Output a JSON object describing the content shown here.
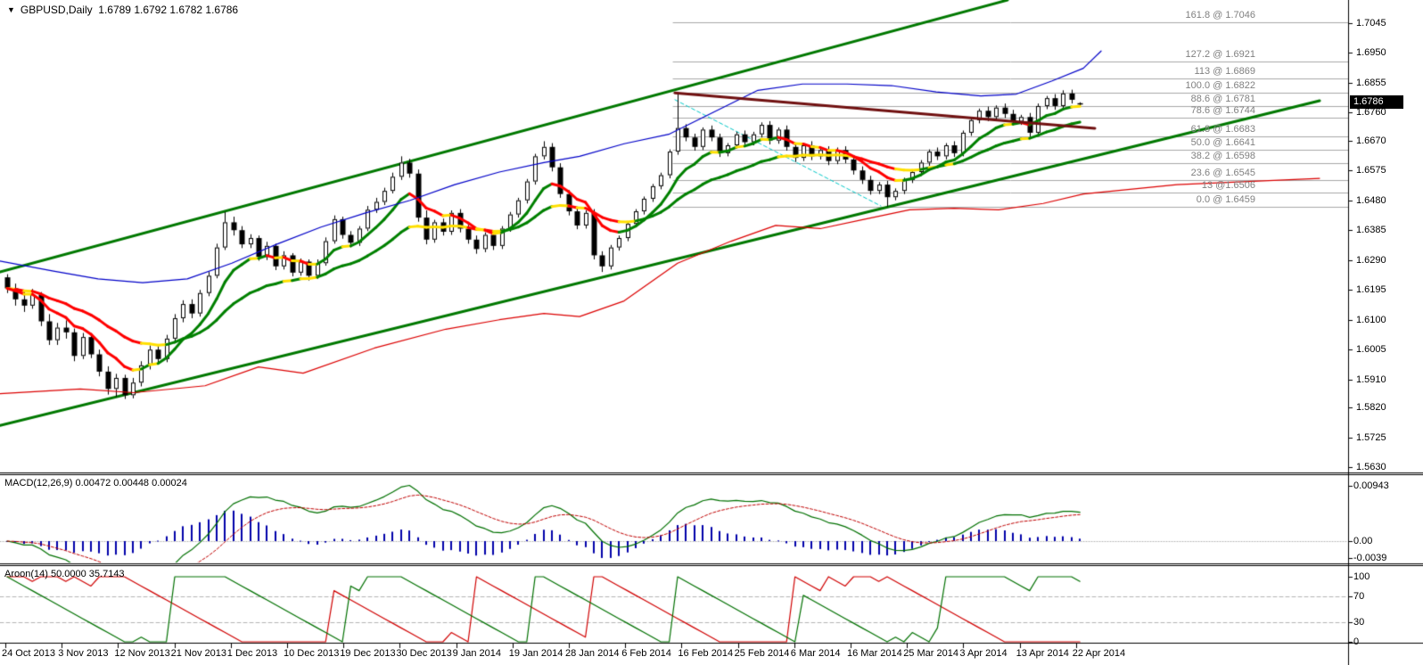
{
  "header": {
    "symbol_label": "GBPUSD,Daily",
    "ohlc_label": "1.6789 1.6792 1.6782 1.6786",
    "collapse_icon": "▼"
  },
  "price_axis": {
    "current_price": "1.6786",
    "ticks": [
      "1.7045",
      "1.6950",
      "1.6855",
      "1.6760",
      "1.6670",
      "1.6575",
      "1.6480",
      "1.6385",
      "1.6290",
      "1.6195",
      "1.6100",
      "1.6005",
      "1.5910",
      "1.5820",
      "1.5725",
      "1.5630"
    ]
  },
  "panels": {
    "macd": {
      "label": "MACD(12,26,9) 0.00472 0.00448 0.00024",
      "axis": [
        {
          "label": "0.00943",
          "value": 0.00943
        },
        {
          "label": "0.00",
          "value": 0
        },
        {
          "label": "-0.0039",
          "value": -0.0039
        }
      ]
    },
    "aroon": {
      "label": "Aroon(14) 50.0000 35.7143",
      "axis": [
        {
          "label": "100",
          "value": 100
        },
        {
          "label": "70",
          "value": 70
        },
        {
          "label": "30",
          "value": 30
        },
        {
          "label": "0",
          "value": 0
        }
      ],
      "dashed_grid_values": [
        70,
        30
      ]
    }
  },
  "time_axis": {
    "labels": [
      "24 Oct 2013",
      "3 Nov 2013",
      "12 Nov 2013",
      "21 Nov 2013",
      "1 Dec 2013",
      "10 Dec 2013",
      "19 Dec 2013",
      "30 Dec 2013",
      "9 Jan 2014",
      "19 Jan 2014",
      "28 Jan 2014",
      "6 Feb 2014",
      "16 Feb 2014",
      "25 Feb 2014",
      "6 Mar 2014",
      "16 Mar 2014",
      "25 Mar 2014",
      "3 Apr 2014",
      "13 Apr 2014",
      "22 Apr 2014"
    ]
  },
  "chart_data": {
    "type": "candlestick",
    "symbol": "GBPUSD",
    "timeframe": "Daily",
    "ohlc_current": {
      "open": 1.6789,
      "high": 1.6792,
      "low": 1.6782,
      "close": 1.6786
    },
    "candles": [
      [
        1.6235,
        1.6245,
        1.6185,
        1.62
      ],
      [
        1.62,
        1.6215,
        1.6145,
        1.6165
      ],
      [
        1.6165,
        1.619,
        1.6125,
        1.6145
      ],
      [
        1.6145,
        1.6198,
        1.6135,
        1.618
      ],
      [
        1.618,
        1.6188,
        1.608,
        1.6095
      ],
      [
        1.6095,
        1.6118,
        1.602,
        1.6035
      ],
      [
        1.6035,
        1.609,
        1.602,
        1.6075
      ],
      [
        1.6075,
        1.6098,
        1.604,
        1.606
      ],
      [
        1.606,
        1.6072,
        1.5968,
        1.5985
      ],
      [
        1.5985,
        1.6058,
        1.5975,
        1.6045
      ],
      [
        1.6045,
        1.6052,
        1.5978,
        1.599
      ],
      [
        1.599,
        1.6005,
        1.592,
        1.5935
      ],
      [
        1.5935,
        1.5952,
        1.5862,
        1.588
      ],
      [
        1.588,
        1.5928,
        1.5855,
        1.5915
      ],
      [
        1.5915,
        1.5925,
        1.5848,
        1.586
      ],
      [
        1.586,
        1.5915,
        1.585,
        1.59
      ],
      [
        1.59,
        1.5968,
        1.5888,
        1.5955
      ],
      [
        1.5955,
        1.6018,
        1.5942,
        1.6005
      ],
      [
        1.6005,
        1.6022,
        1.5958,
        1.5975
      ],
      [
        1.5975,
        1.6052,
        1.5965,
        1.604
      ],
      [
        1.604,
        1.6118,
        1.6032,
        1.6105
      ],
      [
        1.6105,
        1.6162,
        1.6092,
        1.615
      ],
      [
        1.615,
        1.6165,
        1.6105,
        1.612
      ],
      [
        1.612,
        1.6195,
        1.611,
        1.6185
      ],
      [
        1.6185,
        1.6252,
        1.6175,
        1.624
      ],
      [
        1.624,
        1.6342,
        1.6232,
        1.633
      ],
      [
        1.633,
        1.6443,
        1.6322,
        1.641
      ],
      [
        1.641,
        1.6428,
        1.6368,
        1.6385
      ],
      [
        1.6385,
        1.6398,
        1.6328,
        1.634
      ],
      [
        1.634,
        1.6372,
        1.6328,
        1.636
      ],
      [
        1.636,
        1.6368,
        1.6288,
        1.63
      ],
      [
        1.63,
        1.6348,
        1.629,
        1.6335
      ],
      [
        1.6335,
        1.6342,
        1.6258,
        1.627
      ],
      [
        1.627,
        1.6318,
        1.626,
        1.6305
      ],
      [
        1.6305,
        1.6312,
        1.6238,
        1.625
      ],
      [
        1.625,
        1.6295,
        1.624,
        1.6285
      ],
      [
        1.6285,
        1.6292,
        1.6225,
        1.624
      ],
      [
        1.624,
        1.6292,
        1.623,
        1.628
      ],
      [
        1.628,
        1.6362,
        1.6272,
        1.635
      ],
      [
        1.635,
        1.6432,
        1.6342,
        1.642
      ],
      [
        1.642,
        1.6428,
        1.6358,
        1.637
      ],
      [
        1.637,
        1.6382,
        1.633,
        1.6345
      ],
      [
        1.6345,
        1.6398,
        1.6335,
        1.639
      ],
      [
        1.639,
        1.6462,
        1.6382,
        1.645
      ],
      [
        1.645,
        1.6488,
        1.644,
        1.6475
      ],
      [
        1.6475,
        1.652,
        1.6465,
        1.651
      ],
      [
        1.651,
        1.6568,
        1.6502,
        1.6555
      ],
      [
        1.6555,
        1.662,
        1.6545,
        1.66
      ],
      [
        1.66,
        1.6612,
        1.6552,
        1.6565
      ],
      [
        1.6565,
        1.6578,
        1.6412,
        1.6425
      ],
      [
        1.6425,
        1.6448,
        1.634,
        1.6355
      ],
      [
        1.6355,
        1.6418,
        1.6345,
        1.641
      ],
      [
        1.641,
        1.6422,
        1.6368,
        1.638
      ],
      [
        1.638,
        1.6448,
        1.637,
        1.644
      ],
      [
        1.644,
        1.6452,
        1.6378,
        1.639
      ],
      [
        1.639,
        1.6402,
        1.6342,
        1.6355
      ],
      [
        1.6355,
        1.6368,
        1.631,
        1.6325
      ],
      [
        1.6325,
        1.6378,
        1.6315,
        1.637
      ],
      [
        1.637,
        1.6382,
        1.6322,
        1.6335
      ],
      [
        1.6335,
        1.6398,
        1.6325,
        1.639
      ],
      [
        1.639,
        1.6443,
        1.638,
        1.6435
      ],
      [
        1.6435,
        1.6488,
        1.6425,
        1.648
      ],
      [
        1.648,
        1.6548,
        1.647,
        1.654
      ],
      [
        1.654,
        1.6628,
        1.653,
        1.662
      ],
      [
        1.662,
        1.6668,
        1.661,
        1.665
      ],
      [
        1.665,
        1.6662,
        1.6572,
        1.6585
      ],
      [
        1.6585,
        1.6598,
        1.6488,
        1.65
      ],
      [
        1.65,
        1.6512,
        1.6432,
        1.6445
      ],
      [
        1.6445,
        1.6458,
        1.6388,
        1.64
      ],
      [
        1.64,
        1.6448,
        1.639,
        1.644
      ],
      [
        1.644,
        1.6452,
        1.6292,
        1.6305
      ],
      [
        1.6305,
        1.6318,
        1.6252,
        1.627
      ],
      [
        1.627,
        1.6338,
        1.626,
        1.633
      ],
      [
        1.633,
        1.6368,
        1.632,
        1.636
      ],
      [
        1.636,
        1.6412,
        1.635,
        1.6405
      ],
      [
        1.6405,
        1.6452,
        1.6395,
        1.6445
      ],
      [
        1.6445,
        1.6492,
        1.6435,
        1.6485
      ],
      [
        1.6485,
        1.6532,
        1.6475,
        1.6525
      ],
      [
        1.6525,
        1.6568,
        1.6515,
        1.656
      ],
      [
        1.656,
        1.6642,
        1.655,
        1.6635
      ],
      [
        1.6635,
        1.6823,
        1.6625,
        1.671
      ],
      [
        1.671,
        1.6722,
        1.6668,
        1.668
      ],
      [
        1.668,
        1.6692,
        1.6638,
        1.665
      ],
      [
        1.665,
        1.6712,
        1.664,
        1.6705
      ],
      [
        1.6705,
        1.6718,
        1.6668,
        1.668
      ],
      [
        1.668,
        1.6692,
        1.6618,
        1.663
      ],
      [
        1.663,
        1.6662,
        1.662,
        1.6655
      ],
      [
        1.6655,
        1.6698,
        1.6645,
        1.669
      ],
      [
        1.669,
        1.6702,
        1.6652,
        1.6665
      ],
      [
        1.6665,
        1.6698,
        1.6655,
        1.669
      ],
      [
        1.669,
        1.6728,
        1.668,
        1.672
      ],
      [
        1.672,
        1.6732,
        1.6658,
        1.667
      ],
      [
        1.667,
        1.6712,
        1.666,
        1.6705
      ],
      [
        1.6705,
        1.6718,
        1.6638,
        1.665
      ],
      [
        1.665,
        1.6662,
        1.6602,
        1.6615
      ],
      [
        1.6615,
        1.6662,
        1.6605,
        1.6655
      ],
      [
        1.6655,
        1.6668,
        1.6608,
        1.662
      ],
      [
        1.662,
        1.6648,
        1.661,
        1.664
      ],
      [
        1.664,
        1.6652,
        1.6592,
        1.6605
      ],
      [
        1.6605,
        1.6648,
        1.6595,
        1.664
      ],
      [
        1.664,
        1.6652,
        1.6598,
        1.661
      ],
      [
        1.661,
        1.6622,
        1.6562,
        1.6575
      ],
      [
        1.6575,
        1.6588,
        1.6532,
        1.6545
      ],
      [
        1.6545,
        1.6558,
        1.6498,
        1.651
      ],
      [
        1.651,
        1.6538,
        1.65,
        1.653
      ],
      [
        1.653,
        1.6542,
        1.646,
        1.649
      ],
      [
        1.649,
        1.6518,
        1.648,
        1.651
      ],
      [
        1.651,
        1.6552,
        1.65,
        1.6545
      ],
      [
        1.6545,
        1.6578,
        1.6535,
        1.657
      ],
      [
        1.657,
        1.6608,
        1.656,
        1.66
      ],
      [
        1.66,
        1.6642,
        1.659,
        1.6635
      ],
      [
        1.6635,
        1.6648,
        1.6608,
        1.662
      ],
      [
        1.662,
        1.6662,
        1.661,
        1.6655
      ],
      [
        1.6655,
        1.6668,
        1.6618,
        1.663
      ],
      [
        1.663,
        1.6702,
        1.662,
        1.6695
      ],
      [
        1.6695,
        1.6742,
        1.6685,
        1.6735
      ],
      [
        1.6735,
        1.6772,
        1.6725,
        1.6765
      ],
      [
        1.6765,
        1.6778,
        1.6732,
        1.6745
      ],
      [
        1.6745,
        1.6782,
        1.6735,
        1.6775
      ],
      [
        1.6775,
        1.6788,
        1.6742,
        1.6755
      ],
      [
        1.6755,
        1.6768,
        1.6718,
        1.673
      ],
      [
        1.673,
        1.6752,
        1.672,
        1.6745
      ],
      [
        1.6745,
        1.6758,
        1.6682,
        1.6695
      ],
      [
        1.6695,
        1.6788,
        1.6685,
        1.678
      ],
      [
        1.678,
        1.6812,
        1.677,
        1.6805
      ],
      [
        1.6805,
        1.6818,
        1.6768,
        1.678
      ],
      [
        1.678,
        1.683,
        1.677,
        1.682
      ],
      [
        1.682,
        1.6832,
        1.6788,
        1.68
      ],
      [
        1.6789,
        1.6792,
        1.6782,
        1.6786
      ]
    ],
    "fib_levels": [
      {
        "label": "161.8 @ 1.7046",
        "price": 1.7046
      },
      {
        "label": "127.2 @ 1.6921",
        "price": 1.6921
      },
      {
        "label": "113 @ 1.6869",
        "price": 1.6869
      },
      {
        "label": "100.0 @ 1.6822",
        "price": 1.6822
      },
      {
        "label": "88.6 @ 1.6781",
        "price": 1.6781
      },
      {
        "label": "78.6 @ 1.6744",
        "price": 1.6744
      },
      {
        "label": "61.8 @ 1.6683",
        "price": 1.6683
      },
      {
        "label": "50.0 @ 1.6641",
        "price": 1.6641
      },
      {
        "label": "38.2 @ 1.6598",
        "price": 1.6598
      },
      {
        "label": "23.6 @ 1.6545",
        "price": 1.6545
      },
      {
        "label": "13 @1.6506",
        "price": 1.6506
      },
      {
        "label": "0.0 @ 1.6459",
        "price": 1.6459
      }
    ],
    "overlays": {
      "channel_upper": [
        [
          0,
          1.6252
        ],
        [
          1130,
          1.7117
        ]
      ],
      "channel_lower": [
        [
          0,
          1.5764
        ],
        [
          1480,
          1.6797
        ]
      ],
      "trendline_maroon": [
        [
          757,
          1.6822
        ],
        [
          1228,
          1.6709
        ]
      ],
      "fib_trend_cyan": [
        [
          757,
          1.68
        ],
        [
          988,
          1.6462
        ]
      ],
      "blue_ma": [
        [
          0,
          1.6287
        ],
        [
          60,
          1.6255
        ],
        [
          110,
          1.623
        ],
        [
          160,
          1.6218
        ],
        [
          210,
          1.623
        ],
        [
          260,
          1.628
        ],
        [
          310,
          1.634
        ],
        [
          360,
          1.6395
        ],
        [
          410,
          1.644
        ],
        [
          460,
          1.648
        ],
        [
          510,
          1.653
        ],
        [
          560,
          1.657
        ],
        [
          610,
          1.66
        ],
        [
          650,
          1.662
        ],
        [
          700,
          1.666
        ],
        [
          750,
          1.669
        ],
        [
          800,
          1.676
        ],
        [
          850,
          1.683
        ],
        [
          900,
          1.685
        ],
        [
          950,
          1.685
        ],
        [
          1000,
          1.6845
        ],
        [
          1050,
          1.6825
        ],
        [
          1100,
          1.6812
        ],
        [
          1140,
          1.6818
        ],
        [
          1180,
          1.686
        ],
        [
          1215,
          1.69
        ],
        [
          1235,
          1.6955
        ]
      ],
      "slow_red_ma": [
        [
          0,
          1.5865
        ],
        [
          90,
          1.588
        ],
        [
          150,
          1.5868
        ],
        [
          230,
          1.589
        ],
        [
          290,
          1.595
        ],
        [
          340,
          1.593
        ],
        [
          420,
          1.601
        ],
        [
          500,
          1.607
        ],
        [
          560,
          1.61
        ],
        [
          610,
          1.612
        ],
        [
          650,
          1.611
        ],
        [
          700,
          1.616
        ],
        [
          760,
          1.628
        ],
        [
          820,
          1.635
        ],
        [
          870,
          1.64
        ],
        [
          920,
          1.639
        ],
        [
          970,
          1.642
        ],
        [
          1020,
          1.645
        ],
        [
          1070,
          1.6455
        ],
        [
          1120,
          1.645
        ],
        [
          1170,
          1.647
        ],
        [
          1215,
          1.65
        ],
        [
          1320,
          1.653
        ],
        [
          1480,
          1.655
        ]
      ]
    },
    "indicators": {
      "macd": {
        "params": [
          12,
          26,
          9
        ],
        "values_shown": [
          0.00472,
          0.00448,
          0.00024
        ]
      },
      "aroon": {
        "period": 14,
        "values_shown": [
          50.0,
          35.7143
        ]
      }
    },
    "colors": {
      "bull": "#FFFFFF",
      "bear": "#000000",
      "outline": "#000000",
      "ma_up": "#008000",
      "ma_flat": "#FFE000",
      "ma_down": "#FF0000",
      "blue_ma": "#0000C8",
      "slow_red_ma": "#DC0000",
      "channel": "#007800",
      "trendline": "#701010",
      "fib_trend": "#00C8C8",
      "fib_line": "#A8A8A8",
      "fib_text": "#808080",
      "macd_hist": "#0000AA",
      "macd_line": "#007000",
      "macd_signal": "#C00000",
      "aroon_up": "#007000",
      "aroon_down": "#D00000",
      "grid_dash": "#B4B4B4",
      "axis": "#000000",
      "badge_bg": "#000000",
      "badge_text": "#FFFFFF"
    }
  }
}
